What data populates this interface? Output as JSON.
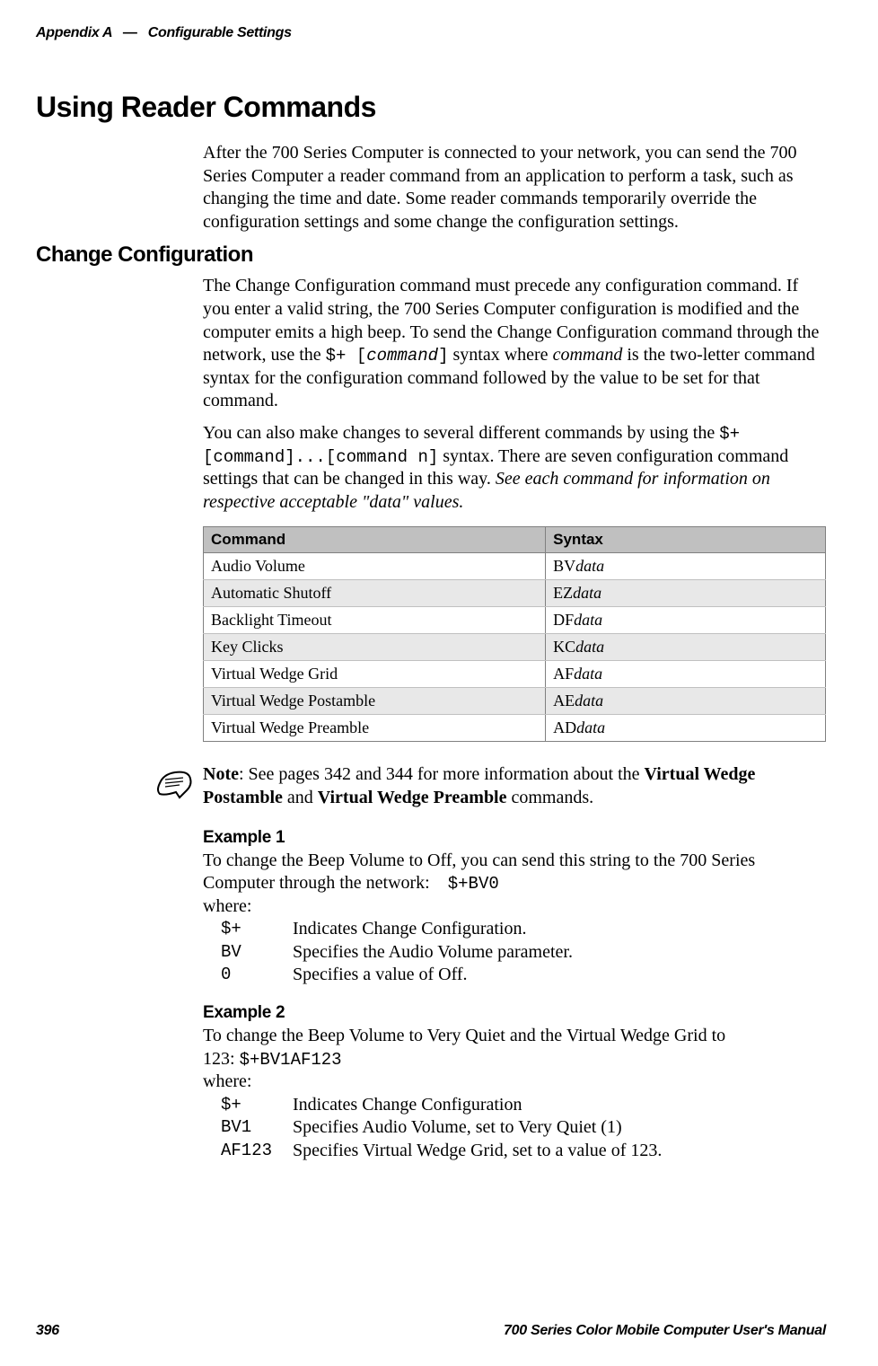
{
  "header": {
    "appendix": "Appendix A",
    "dash": "—",
    "title": "Configurable Settings"
  },
  "h1": "Using Reader Commands",
  "intro": "After the 700 Series Computer is connected to your network, you can send the 700 Series Computer a reader command from an application to perform a task, such as changing the time and date. Some reader commands temporarily override the configuration settings and some change the configuration settings.",
  "h2": "Change Configuration",
  "p1a": "The Change Configuration command must precede any configuration command. If you enter a valid string, the 700 Series Computer configuration is modified and the computer emits a high beep. To send the Change Configuration command through the network, use the ",
  "p1_code": "$+ [",
  "p1_code_i": "command",
  "p1_code2": "]",
  "p1b": " syntax where ",
  "p1_i": "command",
  "p1c": " is the two-letter command syntax for the configuration command followed by the value to be set for that command.",
  "p2a": "You can also make changes to several different commands by using the ",
  "p2_code": "$+ [command]...[command n]",
  "p2b": " syntax. There are seven configuration command settings that can be changed in this way. ",
  "p2_i": "See each command for information on respective acceptable \"data\" values.",
  "table": {
    "headers": [
      "Command",
      "Syntax"
    ],
    "rows": [
      {
        "cmd": "Audio Volume",
        "prefix": "BV",
        "suffix": "data",
        "shaded": false
      },
      {
        "cmd": "Automatic Shutoff",
        "prefix": "EZ",
        "suffix": "data",
        "shaded": true
      },
      {
        "cmd": "Backlight Timeout",
        "prefix": "DF",
        "suffix": "data",
        "shaded": false
      },
      {
        "cmd": "Key Clicks",
        "prefix": "KC",
        "suffix": "data",
        "shaded": true
      },
      {
        "cmd": "Virtual Wedge Grid",
        "prefix": "AF",
        "suffix": "data",
        "shaded": false
      },
      {
        "cmd": "Virtual Wedge Postamble",
        "prefix": "AE",
        "suffix": "data",
        "shaded": true
      },
      {
        "cmd": "Virtual Wedge Preamble",
        "prefix": "AD",
        "suffix": "data",
        "shaded": false
      }
    ]
  },
  "note": {
    "label": "Note",
    "text1": ": See pages 342 and 344 for more information about the ",
    "bold1": "Virtual Wedge Postamble",
    "text2": " and ",
    "bold2": "Virtual Wedge Preamble",
    "text3": " commands."
  },
  "ex1": {
    "title": "Example 1",
    "p1": "To change the Beep Volume to Off, you can send this string to the 700 Series Computer through the network:",
    "code": "$+BV0",
    "where": "where:",
    "defs": [
      {
        "term": "$+",
        "desc": "Indicates Change Configuration."
      },
      {
        "term": "BV",
        "desc": "Specifies the Audio Volume parameter."
      },
      {
        "term": "0",
        "desc": "Specifies a value of Off."
      }
    ]
  },
  "ex2": {
    "title": "Example 2",
    "p1": "To change the Beep Volume to Very Quiet and the Virtual Wedge Grid to 123:",
    "code": "$+BV1AF123",
    "where": "where:",
    "defs": [
      {
        "term": "$+",
        "desc": "Indicates Change Configuration"
      },
      {
        "term": "BV1",
        "desc": "Specifies Audio Volume, set to Very Quiet (1)"
      },
      {
        "term": "AF123",
        "desc": "Specifies Virtual Wedge Grid, set to a value of 123."
      }
    ]
  },
  "footer": {
    "page": "396",
    "title": "700 Series Color Mobile Computer User's Manual"
  }
}
